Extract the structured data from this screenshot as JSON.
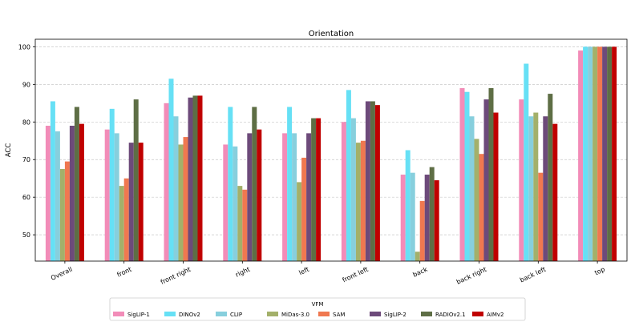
{
  "chart_data": {
    "type": "bar",
    "title": "Orientation",
    "xlabel": "",
    "ylabel": "ACC",
    "ylim": [
      43,
      102
    ],
    "yticks": [
      50,
      60,
      70,
      80,
      90,
      100
    ],
    "grid": "y-dashed",
    "categories": [
      "Overall",
      "front",
      "front right",
      "right",
      "left",
      "front left",
      "back",
      "back right",
      "back left",
      "top"
    ],
    "legend_title": "VFM",
    "legend_position": "bottom-center",
    "series": [
      {
        "name": "SigLIP-1",
        "color": "#f28cb8",
        "values": [
          79,
          78,
          85,
          74,
          77,
          80,
          66,
          89,
          86,
          99
        ]
      },
      {
        "name": "DINOv2",
        "color": "#66e0f5",
        "values": [
          85.5,
          83.5,
          91.5,
          84,
          84,
          88.5,
          72.5,
          88,
          95.5,
          100
        ]
      },
      {
        "name": "CLIP",
        "color": "#87cfdd",
        "values": [
          77.5,
          77,
          81.5,
          73.5,
          77,
          81,
          66.5,
          81.5,
          81.5,
          100
        ]
      },
      {
        "name": "MiDas-3.0",
        "color": "#a3b06a",
        "values": [
          67.5,
          63,
          74,
          63,
          64,
          74.5,
          45.5,
          75.5,
          82.5,
          100
        ]
      },
      {
        "name": "SAM",
        "color": "#f07850",
        "values": [
          69.5,
          65,
          76,
          62,
          70.5,
          75,
          59,
          71.5,
          66.5,
          100
        ]
      },
      {
        "name": "SigLIP-2",
        "color": "#6d4a7a",
        "values": [
          79,
          74.5,
          86.5,
          77,
          77,
          85.5,
          66,
          86,
          81.5,
          100
        ]
      },
      {
        "name": "RADIOv2.1",
        "color": "#5e6e45",
        "values": [
          84,
          86,
          87,
          84,
          81,
          85.5,
          68,
          89,
          87.5,
          100
        ]
      },
      {
        "name": "AIMv2",
        "color": "#c00000",
        "values": [
          79.5,
          74.5,
          87,
          78,
          81,
          84.5,
          64.5,
          82.5,
          79.5,
          100
        ]
      }
    ]
  }
}
